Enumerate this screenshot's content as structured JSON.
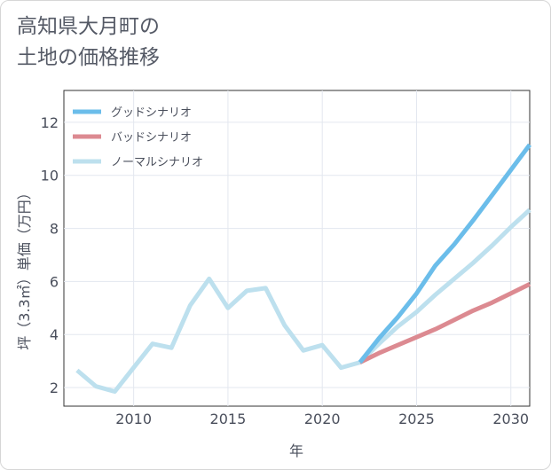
{
  "title_lines": [
    "高知県大月町の",
    "土地の価格推移"
  ],
  "chart_data": {
    "type": "line",
    "xlabel": "年",
    "ylabel": "坪（3.3㎡）単価（万円）",
    "xlim": [
      2006.3,
      2031
    ],
    "ylim": [
      1.3,
      13.2
    ],
    "x_ticks": [
      2010,
      2015,
      2020,
      2025,
      2030
    ],
    "y_ticks": [
      2,
      4,
      6,
      8,
      10,
      12
    ],
    "grid": true,
    "legend_position": "top-left",
    "series": [
      {
        "name": "グッドシナリオ",
        "color": "#6bbdea",
        "x": [
          2022,
          2023,
          2024,
          2025,
          2026,
          2027,
          2028,
          2029,
          2030,
          2031
        ],
        "values": [
          2.95,
          3.85,
          4.65,
          5.55,
          6.6,
          7.4,
          8.3,
          9.25,
          10.2,
          11.15
        ]
      },
      {
        "name": "バッドシナリオ",
        "color": "#dc8a91",
        "x": [
          2022,
          2023,
          2024,
          2025,
          2026,
          2027,
          2028,
          2029,
          2030,
          2031
        ],
        "values": [
          2.95,
          3.3,
          3.6,
          3.9,
          4.2,
          4.55,
          4.9,
          5.2,
          5.55,
          5.9
        ]
      },
      {
        "name": "ノーマルシナリオ",
        "color": "#bde0ee",
        "x": [
          2007,
          2008,
          2009,
          2010,
          2011,
          2012,
          2013,
          2014,
          2015,
          2016,
          2017,
          2018,
          2019,
          2020,
          2021,
          2022,
          2023,
          2024,
          2025,
          2026,
          2027,
          2028,
          2029,
          2030,
          2031
        ],
        "values": [
          2.65,
          2.05,
          1.85,
          2.75,
          3.65,
          3.5,
          5.1,
          6.1,
          5.0,
          5.65,
          5.75,
          4.35,
          3.4,
          3.6,
          2.75,
          2.95,
          3.65,
          4.3,
          4.85,
          5.5,
          6.1,
          6.7,
          7.35,
          8.05,
          8.7
        ]
      }
    ]
  }
}
